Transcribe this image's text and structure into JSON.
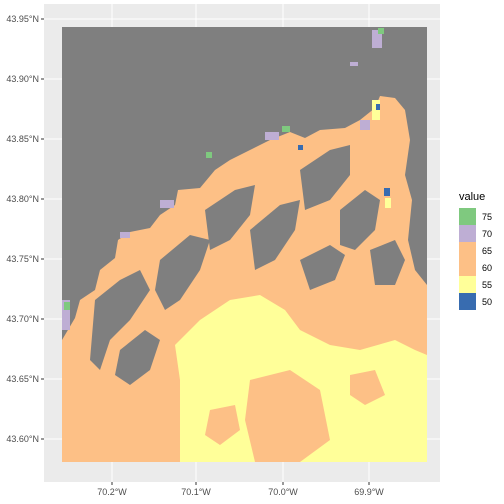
{
  "chart_data": {
    "type": "raster-map",
    "x_ticks": [
      "70.2°W",
      "70.1°W",
      "70.0°W",
      "69.9°W"
    ],
    "y_ticks": [
      "43.95°N",
      "43.90°N",
      "43.85°N",
      "43.80°N",
      "43.75°N",
      "43.70°N",
      "43.65°N",
      "43.60°N"
    ],
    "legend": {
      "title": "value",
      "entries": [
        {
          "label": "75",
          "color": "#7fc97f"
        },
        {
          "label": "70",
          "color": "#beaed4"
        },
        {
          "label": "65",
          "color": "#fdc086"
        },
        {
          "label": "60",
          "color": "#fdc086"
        },
        {
          "label": "55",
          "color": "#ffff99"
        },
        {
          "label": "50",
          "color": "#386cb0"
        }
      ]
    },
    "colors": {
      "panel_background": "#ebebeb",
      "grid": "#ffffff",
      "na_value": "#7f7f7f",
      "v75": "#7fc97f",
      "v70": "#beaed4",
      "v60": "#fdc086",
      "v55": "#ffff99",
      "v50": "#386cb0"
    }
  }
}
